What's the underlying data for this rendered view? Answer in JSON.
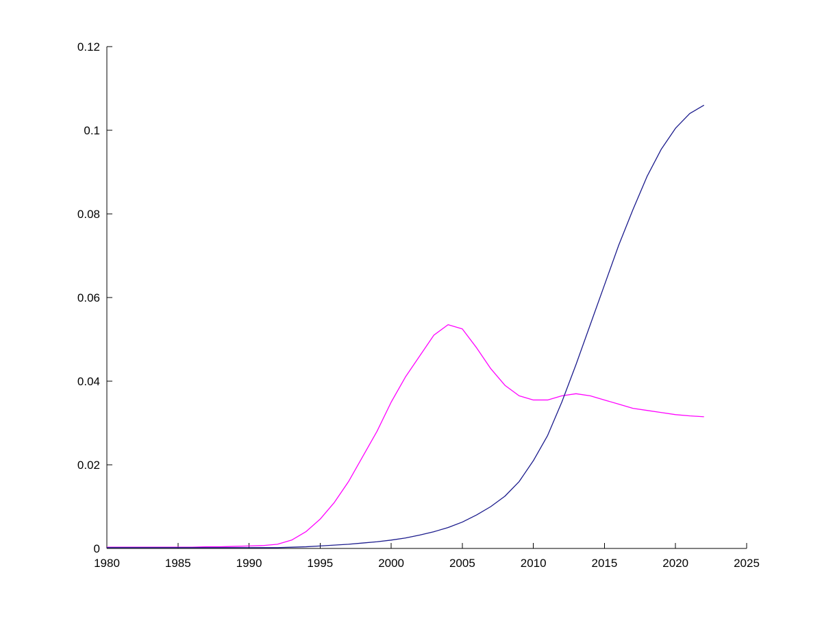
{
  "figure": {
    "background": "#ffffff",
    "axis_color": "#000000",
    "tick_font_size": 17
  },
  "chart_data": {
    "type": "line",
    "title": "",
    "xlabel": "",
    "ylabel": "",
    "grid": false,
    "legend": null,
    "xlim": [
      1980,
      2025
    ],
    "ylim": [
      0,
      0.12
    ],
    "xticks": [
      1980,
      1985,
      1990,
      1995,
      2000,
      2005,
      2010,
      2015,
      2020,
      2025
    ],
    "xtick_labels": [
      "1980",
      "1985",
      "1990",
      "1995",
      "2000",
      "2005",
      "2010",
      "2015",
      "2020",
      "2025"
    ],
    "yticks": [
      0,
      0.02,
      0.04,
      0.06,
      0.08,
      0.1,
      0.12
    ],
    "ytick_labels": [
      "0",
      "0.02",
      "0.04",
      "0.06",
      "0.08",
      "0.1",
      "0.12"
    ],
    "x": [
      1980,
      1981,
      1982,
      1983,
      1984,
      1985,
      1986,
      1987,
      1988,
      1989,
      1990,
      1991,
      1992,
      1993,
      1994,
      1995,
      1996,
      1997,
      1998,
      1999,
      2000,
      2001,
      2002,
      2003,
      2004,
      2005,
      2006,
      2007,
      2008,
      2009,
      2010,
      2011,
      2012,
      2013,
      2014,
      2015,
      2016,
      2017,
      2018,
      2019,
      2020,
      2021,
      2022
    ],
    "series": [
      {
        "name": "magenta-series",
        "color": "#FF00FF",
        "values": [
          0.0003,
          0.0003,
          0.0003,
          0.0003,
          0.0003,
          0.0003,
          0.0003,
          0.0004,
          0.0004,
          0.0005,
          0.0006,
          0.0007,
          0.001,
          0.002,
          0.004,
          0.007,
          0.011,
          0.016,
          0.022,
          0.028,
          0.035,
          0.041,
          0.046,
          0.051,
          0.0535,
          0.0525,
          0.048,
          0.043,
          0.039,
          0.0365,
          0.0355,
          0.0355,
          0.0365,
          0.037,
          0.0365,
          0.0355,
          0.0345,
          0.0335,
          0.033,
          0.0325,
          0.032,
          0.0317,
          0.0315
        ]
      },
      {
        "name": "blue-series",
        "color": "#1A1A8C",
        "values": [
          0.0002,
          0.0002,
          0.0002,
          0.0002,
          0.0002,
          0.0002,
          0.0002,
          0.0002,
          0.0002,
          0.0002,
          0.0002,
          0.0002,
          0.0002,
          0.0003,
          0.0004,
          0.0006,
          0.0008,
          0.001,
          0.0013,
          0.0016,
          0.002,
          0.0025,
          0.0032,
          0.004,
          0.005,
          0.0063,
          0.008,
          0.01,
          0.0125,
          0.016,
          0.021,
          0.027,
          0.035,
          0.044,
          0.0535,
          0.063,
          0.0725,
          0.081,
          0.089,
          0.0955,
          0.1005,
          0.104,
          0.106
        ]
      }
    ]
  }
}
